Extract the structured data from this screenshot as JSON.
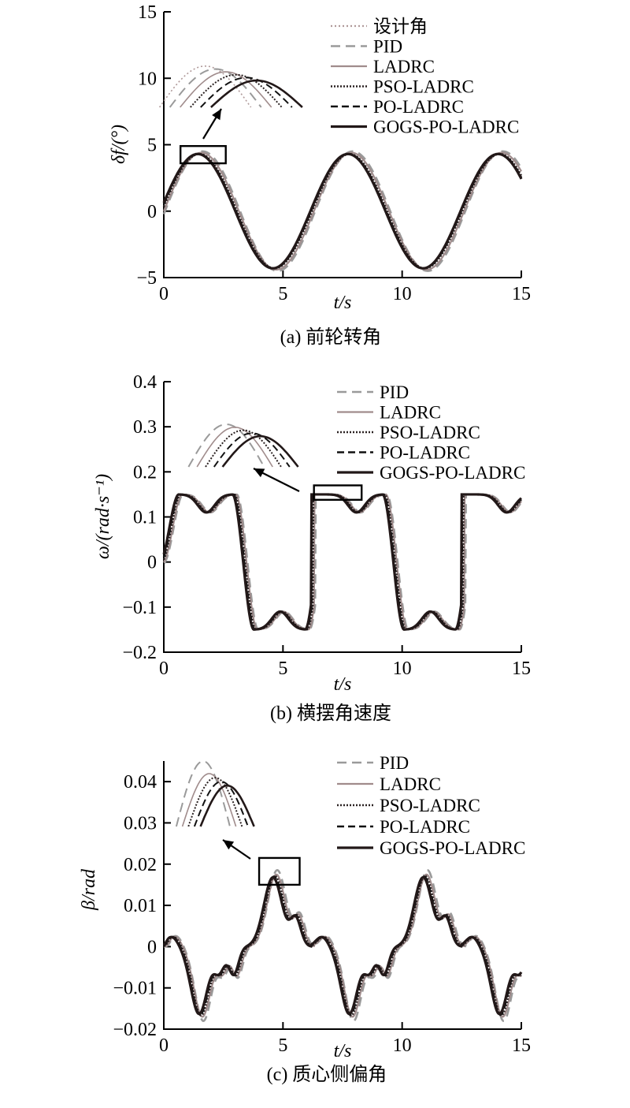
{
  "chart_data": [
    {
      "type": "line",
      "caption": "(a) 前轮转角",
      "xlabel": "t/s",
      "ylabel": "δf/(°)",
      "xlim": [
        0,
        15
      ],
      "ylim": [
        -5,
        15
      ],
      "xticks": [
        0,
        5,
        10,
        15
      ],
      "yticks": [
        -5,
        0,
        5,
        10,
        15
      ],
      "xtick_labels": [
        "0",
        "5",
        "10",
        "15"
      ],
      "ytick_labels": [
        "−5",
        "0",
        "5",
        "10",
        "15"
      ],
      "legend_position": "top-right",
      "zoom_box": {
        "t": [
          0.7,
          2.6
        ],
        "y": [
          3.6,
          4.9
        ]
      },
      "series": [
        {
          "name": "设计角",
          "color": "#b09a9a",
          "dash": "2,3",
          "width": 2.2,
          "t0": 0,
          "t1": 15,
          "fn": "sin",
          "amp": 4.3,
          "period": 6.3,
          "phase": -0.15
        },
        {
          "name": "PID",
          "color": "#9a9a9a",
          "dash": "12,7",
          "width": 2.6,
          "t0": 0,
          "t1": 15,
          "fn": "sin",
          "amp": 4.5,
          "period": 6.3,
          "phase": 0.05
        },
        {
          "name": "LADRC",
          "color": "#a08c8c",
          "dash": "",
          "width": 2.2,
          "t0": 0,
          "t1": 15,
          "fn": "sin",
          "amp": 4.4,
          "period": 6.3,
          "phase": 0.0
        },
        {
          "name": "PSO-LADRC",
          "color": "#2b2222",
          "dash": "2,2",
          "width": 2.6,
          "t0": 0,
          "t1": 15,
          "fn": "sin",
          "amp": 4.3,
          "period": 6.3,
          "phase": -0.08
        },
        {
          "name": "PO-LADRC",
          "color": "#111111",
          "dash": "9,5",
          "width": 2.6,
          "t0": 0,
          "t1": 15,
          "fn": "sin",
          "amp": 4.3,
          "period": 6.3,
          "phase": -0.12
        },
        {
          "name": "GOGS-PO-LADRC",
          "color": "#221818",
          "dash": "",
          "width": 3.2,
          "t0": 0,
          "t1": 15,
          "fn": "sin",
          "amp": 4.3,
          "period": 6.3,
          "phase": -0.15
        }
      ]
    },
    {
      "type": "line",
      "caption": "(b) 横摆角速度",
      "xlabel": "t/s",
      "ylabel": "ω/(rad·s⁻¹)",
      "xlim": [
        0,
        15
      ],
      "ylim": [
        -0.2,
        0.4
      ],
      "xticks": [
        0,
        5,
        10,
        15
      ],
      "yticks": [
        -0.2,
        -0.1,
        0,
        0.1,
        0.2,
        0.3,
        0.4
      ],
      "xtick_labels": [
        "0",
        "5",
        "10",
        "15"
      ],
      "ytick_labels": [
        "−0.2",
        "−0.1",
        "0",
        "0.1",
        "0.2",
        "0.3",
        "0.4"
      ],
      "legend_position": "top-right",
      "zoom_box": {
        "t": [
          6.3,
          8.3
        ],
        "y": [
          0.138,
          0.17
        ]
      },
      "series": [
        {
          "name": "PID",
          "color": "#9a9a9a",
          "dash": "12,7",
          "width": 2.6,
          "t0": 0,
          "t1": 15,
          "fn": "yaw",
          "phase": 0.06
        },
        {
          "name": "LADRC",
          "color": "#a08c8c",
          "dash": "",
          "width": 2.2,
          "t0": 0,
          "t1": 15,
          "fn": "yaw",
          "phase": 0.02
        },
        {
          "name": "PSO-LADRC",
          "color": "#2b2222",
          "dash": "2,2",
          "width": 2.6,
          "t0": 0,
          "t1": 15,
          "fn": "yaw",
          "phase": -0.04
        },
        {
          "name": "PO-LADRC",
          "color": "#111111",
          "dash": "9,5",
          "width": 2.6,
          "t0": 0,
          "t1": 15,
          "fn": "yaw",
          "phase": -0.08
        },
        {
          "name": "GOGS-PO-LADRC",
          "color": "#221818",
          "dash": "",
          "width": 3.2,
          "t0": 0,
          "t1": 15,
          "fn": "yaw",
          "phase": -0.12
        }
      ]
    },
    {
      "type": "line",
      "caption": "(c) 质心侧偏角",
      "xlabel": "t/s",
      "ylabel": "β/rad",
      "xlim": [
        0,
        15
      ],
      "ylim": [
        -0.02,
        0.045
      ],
      "xticks": [
        0,
        5,
        10,
        15
      ],
      "yticks": [
        -0.02,
        -0.01,
        0,
        0.01,
        0.02,
        0.03,
        0.04
      ],
      "xtick_labels": [
        "0",
        "5",
        "10",
        "15"
      ],
      "ytick_labels": [
        "−0.02",
        "−0.01",
        "0",
        "0.01",
        "0.02",
        "0.03",
        "0.04"
      ],
      "legend_position": "top-right",
      "zoom_box": {
        "t": [
          4.0,
          5.7
        ],
        "y": [
          0.015,
          0.0215
        ]
      },
      "series": [
        {
          "name": "PID",
          "color": "#9a9a9a",
          "dash": "12,7",
          "width": 2.6,
          "t0": 0,
          "t1": 15,
          "fn": "slip",
          "amp": 1.06,
          "phase": 0.06
        },
        {
          "name": "LADRC",
          "color": "#a08c8c",
          "dash": "",
          "width": 2.2,
          "t0": 0,
          "t1": 15,
          "fn": "slip",
          "amp": 1.0,
          "phase": 0.02
        },
        {
          "name": "PSO-LADRC",
          "color": "#2b2222",
          "dash": "2,2",
          "width": 2.6,
          "t0": 0,
          "t1": 15,
          "fn": "slip",
          "amp": 0.98,
          "phase": -0.04
        },
        {
          "name": "PO-LADRC",
          "color": "#111111",
          "dash": "9,5",
          "width": 2.6,
          "t0": 0,
          "t1": 15,
          "fn": "slip",
          "amp": 0.97,
          "phase": -0.08
        },
        {
          "name": "GOGS-PO-LADRC",
          "color": "#221818",
          "dash": "",
          "width": 3.2,
          "t0": 0,
          "t1": 15,
          "fn": "slip",
          "amp": 0.96,
          "phase": -0.12
        }
      ]
    }
  ]
}
